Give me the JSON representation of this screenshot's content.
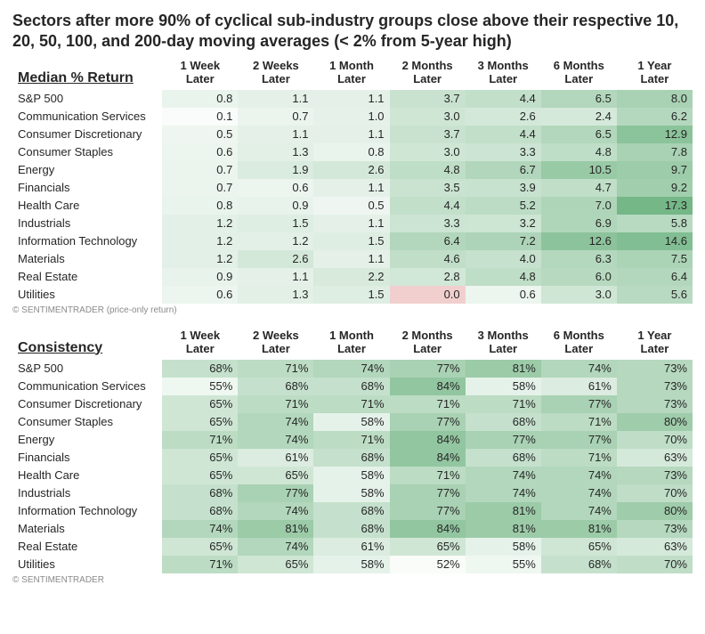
{
  "title": "Sectors after more 90% of cyclical sub-industry groups close above their respective 10, 20, 50, 100, and 200-day moving averages (< 2% from 5-year high)",
  "columns": [
    "1 Week Later",
    "2 Weeks Later",
    "1 Month Later",
    "2 Months Later",
    "3 Months Later",
    "6 Months Later",
    "1 Year Later"
  ],
  "tables": [
    {
      "section_label": "Median % Return",
      "footnote": "© SENTIMENTRADER  (price-only return)",
      "color_scale": {
        "neg_color": "#e6a7a7",
        "zero_color": "#ffffff",
        "pos_mid_color": "#d5ead9",
        "pos_max_color": "#75b787",
        "min": -1.0,
        "max": 17.3
      },
      "decimals": 1,
      "suffix": "",
      "rows": [
        {
          "label": "S&P 500",
          "values": [
            0.8,
            1.1,
            1.1,
            3.7,
            4.4,
            6.5,
            8.0
          ]
        },
        {
          "label": "Communication Services",
          "values": [
            0.1,
            0.7,
            1.0,
            3.0,
            2.6,
            2.4,
            6.2
          ]
        },
        {
          "label": "Consumer Discretionary",
          "values": [
            0.5,
            1.1,
            1.1,
            3.7,
            4.4,
            6.5,
            12.9
          ]
        },
        {
          "label": "Consumer Staples",
          "values": [
            0.6,
            1.3,
            0.8,
            3.0,
            3.3,
            4.8,
            7.8
          ]
        },
        {
          "label": "Energy",
          "values": [
            0.7,
            1.9,
            2.6,
            4.8,
            6.7,
            10.5,
            9.7
          ]
        },
        {
          "label": "Financials",
          "values": [
            0.7,
            0.6,
            1.1,
            3.5,
            3.9,
            4.7,
            9.2
          ]
        },
        {
          "label": "Health Care",
          "values": [
            0.8,
            0.9,
            0.5,
            4.4,
            5.2,
            7.0,
            17.3
          ]
        },
        {
          "label": "Industrials",
          "values": [
            1.2,
            1.5,
            1.1,
            3.3,
            3.2,
            6.9,
            5.8
          ]
        },
        {
          "label": "Information Technology",
          "values": [
            1.2,
            1.2,
            1.5,
            6.4,
            7.2,
            12.6,
            14.6
          ]
        },
        {
          "label": "Materials",
          "values": [
            1.2,
            2.6,
            1.1,
            4.6,
            4.0,
            6.3,
            7.5
          ]
        },
        {
          "label": "Real Estate",
          "values": [
            0.9,
            1.1,
            2.2,
            2.8,
            4.8,
            6.0,
            6.4
          ]
        },
        {
          "label": "Utilities",
          "values": [
            0.6,
            1.3,
            1.5,
            0.0,
            0.6,
            3.0,
            5.6
          ]
        }
      ]
    },
    {
      "section_label": "Consistency",
      "footnote": "© SENTIMENTRADER",
      "color_scale": {
        "neg_color": "#e6a7a7",
        "zero_color": "#ffffff",
        "pos_mid_color": "#d5ead9",
        "pos_max_color": "#8fc49d",
        "min": 50,
        "max": 85
      },
      "decimals": 0,
      "suffix": "%",
      "rows": [
        {
          "label": "S&P 500",
          "values": [
            68,
            71,
            74,
            77,
            81,
            74,
            73
          ]
        },
        {
          "label": "Communication Services",
          "values": [
            55,
            68,
            68,
            84,
            58,
            61,
            73
          ]
        },
        {
          "label": "Consumer Discretionary",
          "values": [
            65,
            71,
            71,
            71,
            71,
            77,
            73
          ]
        },
        {
          "label": "Consumer Staples",
          "values": [
            65,
            74,
            58,
            77,
            68,
            71,
            80
          ]
        },
        {
          "label": "Energy",
          "values": [
            71,
            74,
            71,
            84,
            77,
            77,
            70
          ]
        },
        {
          "label": "Financials",
          "values": [
            65,
            61,
            68,
            84,
            68,
            71,
            63
          ]
        },
        {
          "label": "Health Care",
          "values": [
            65,
            65,
            58,
            71,
            74,
            74,
            73
          ]
        },
        {
          "label": "Industrials",
          "values": [
            68,
            77,
            58,
            77,
            74,
            74,
            70
          ]
        },
        {
          "label": "Information Technology",
          "values": [
            68,
            74,
            68,
            77,
            81,
            74,
            80
          ]
        },
        {
          "label": "Materials",
          "values": [
            74,
            81,
            68,
            84,
            81,
            81,
            73
          ]
        },
        {
          "label": "Real Estate",
          "values": [
            65,
            74,
            61,
            65,
            58,
            65,
            63
          ]
        },
        {
          "label": "Utilities",
          "values": [
            71,
            65,
            58,
            52,
            55,
            68,
            70
          ]
        }
      ]
    }
  ]
}
